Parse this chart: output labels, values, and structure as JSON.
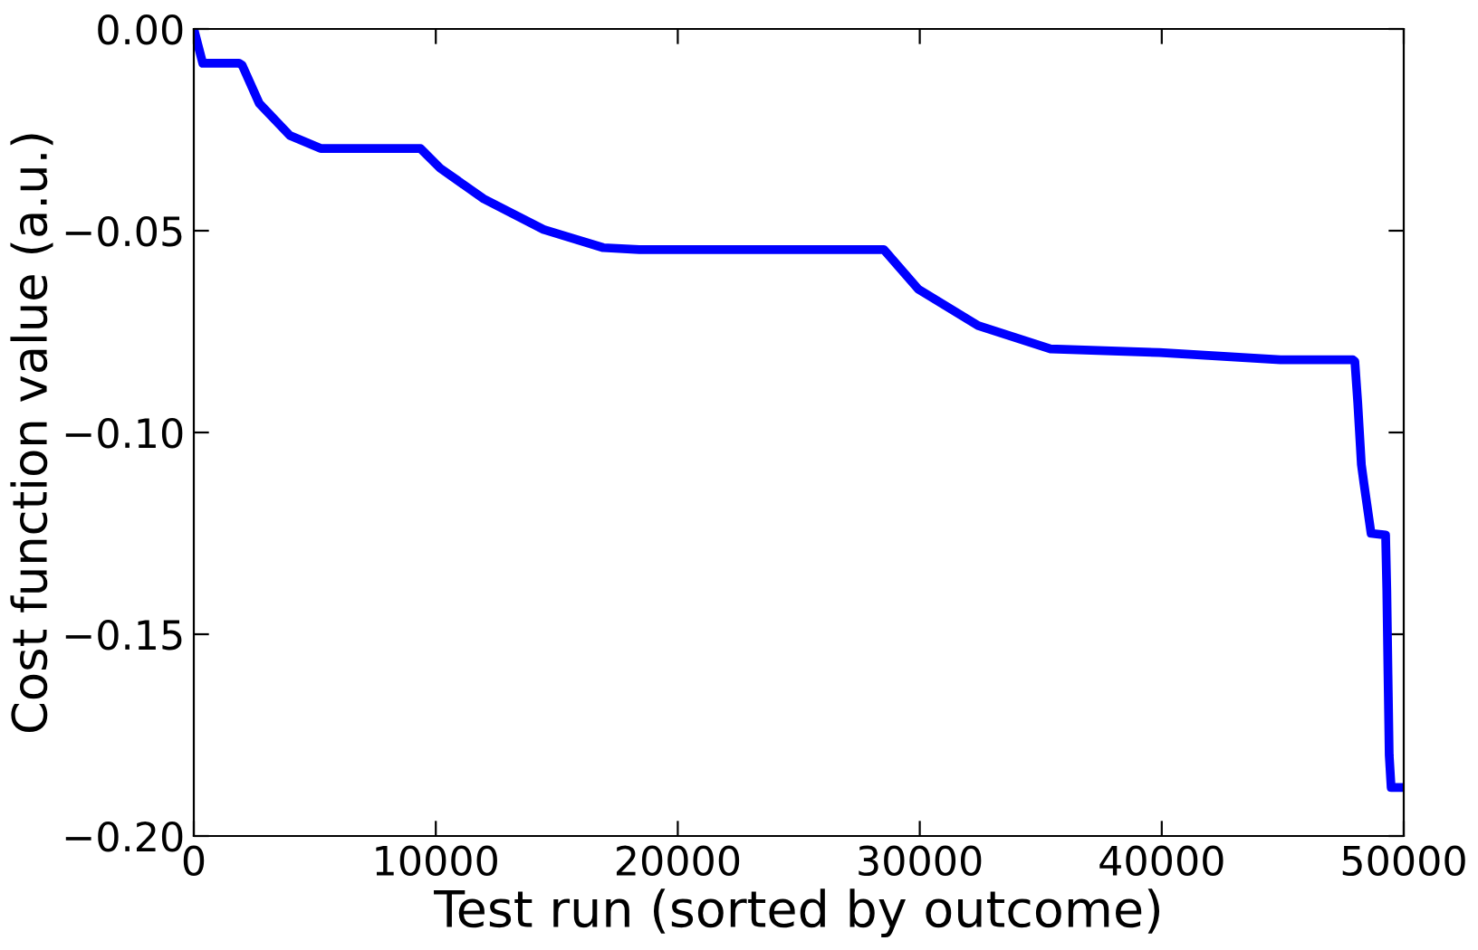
{
  "chart_data": {
    "type": "line",
    "xlabel": "Test run (sorted by outcome)",
    "ylabel": "Cost function value (a.u.)",
    "series": [
      {
        "color": "#0000ff",
        "x": [
          0,
          370,
          1870,
          2000,
          2700,
          3970,
          5240,
          9360,
          10180,
          11980,
          14450,
          16920,
          18410,
          28520,
          29940,
          32410,
          35400,
          39900,
          44900,
          47900,
          47980,
          48100,
          48250,
          48350,
          48650,
          49250,
          49300,
          49350,
          49400,
          49480,
          50000
        ],
        "values": [
          0,
          -0.0085,
          -0.0085,
          -0.009,
          -0.0184,
          -0.0264,
          -0.0296,
          -0.0296,
          -0.0345,
          -0.0421,
          -0.0497,
          -0.0542,
          -0.0547,
          -0.0547,
          -0.0645,
          -0.0735,
          -0.0793,
          -0.0802,
          -0.082,
          -0.082,
          -0.0824,
          -0.0927,
          -0.108,
          -0.1124,
          -0.125,
          -0.1254,
          -0.139,
          -0.16,
          -0.18,
          -0.188,
          -0.188
        ]
      }
    ],
    "xlim": [
      0,
      50000
    ],
    "ylim": [
      -0.2,
      0
    ],
    "xticks": [
      0,
      10000,
      20000,
      30000,
      40000,
      50000
    ],
    "yticks": [
      {
        "value": -0.2,
        "label": "−0.20"
      },
      {
        "value": -0.15,
        "label": "−0.15"
      },
      {
        "value": -0.1,
        "label": "−0.10"
      },
      {
        "value": -0.05,
        "label": "−0.05"
      },
      {
        "value": 0,
        "label": "0.00"
      }
    ],
    "grid": false,
    "legend": false,
    "marker": "none",
    "line_style": "solid"
  }
}
